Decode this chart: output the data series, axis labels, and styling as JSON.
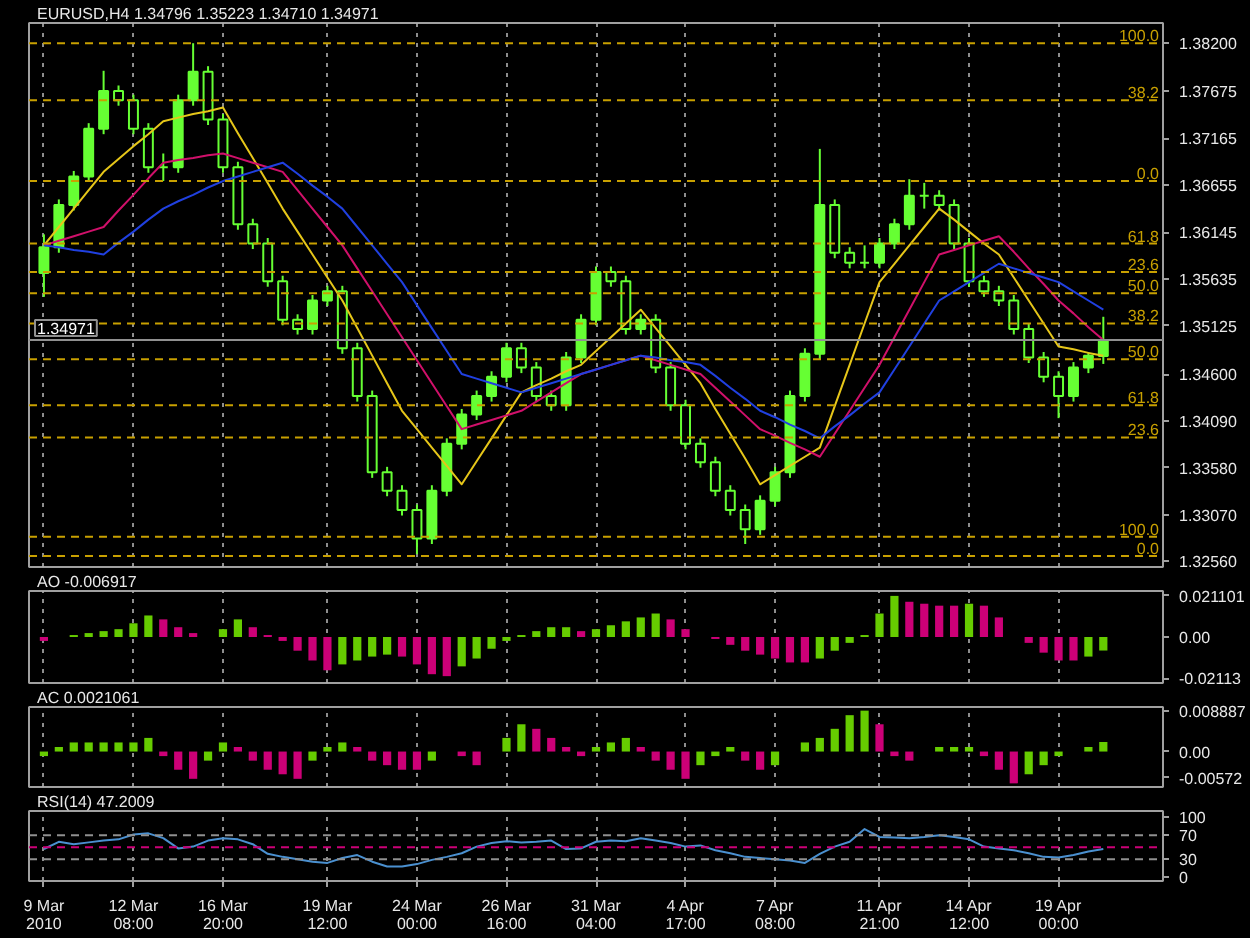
{
  "chart_data": [
    {
      "type": "candlestick",
      "title": "EURUSD,H4  1.34796 1.35223 1.34710 1.34971",
      "color": "#66ff33",
      "categories": [
        null,
        null,
        null,
        null,
        null,
        null,
        null,
        null,
        null,
        null,
        null,
        null,
        null,
        null,
        null,
        null,
        null,
        null,
        null,
        null,
        null,
        null,
        null,
        null,
        null,
        null,
        null,
        null,
        null,
        null,
        null,
        null,
        null,
        null,
        null,
        null,
        null,
        null,
        null,
        null,
        null,
        null,
        null,
        null,
        null,
        null,
        null,
        null,
        null,
        null,
        null,
        null,
        null,
        null,
        null,
        null,
        null,
        null,
        null,
        null,
        null,
        null,
        null,
        null,
        null,
        null,
        null,
        null,
        null,
        null,
        null,
        null
      ],
      "ohlc": [
        [
          1.357,
          1.3612,
          1.3544,
          1.3598
        ],
        [
          1.3598,
          1.365,
          1.3592,
          1.3644
        ],
        [
          1.3644,
          1.3681,
          1.3638,
          1.3675
        ],
        [
          1.3675,
          1.3733,
          1.3669,
          1.3727
        ],
        [
          1.3727,
          1.379,
          1.3721,
          1.3768
        ],
        [
          1.3768,
          1.3774,
          1.3752,
          1.3758
        ],
        [
          1.3758,
          1.3764,
          1.3721,
          1.3727
        ],
        [
          1.3727,
          1.3733,
          1.3679,
          1.3685
        ],
        [
          1.3685,
          1.37,
          1.367,
          1.3685
        ],
        [
          1.3685,
          1.3764,
          1.3679,
          1.3758
        ],
        [
          1.3758,
          1.382,
          1.3752,
          1.3789
        ],
        [
          1.3789,
          1.3795,
          1.3731,
          1.3737
        ],
        [
          1.3737,
          1.3743,
          1.3679,
          1.3685
        ],
        [
          1.3685,
          1.3691,
          1.3617,
          1.3623
        ],
        [
          1.3623,
          1.3629,
          1.3596,
          1.3602
        ],
        [
          1.3602,
          1.3608,
          1.3555,
          1.3561
        ],
        [
          1.3561,
          1.3567,
          1.3513,
          1.3519
        ],
        [
          1.3519,
          1.3525,
          1.3503,
          1.3509
        ],
        [
          1.3509,
          1.3546,
          1.3503,
          1.354
        ],
        [
          1.354,
          1.3556,
          1.3534,
          1.355
        ],
        [
          1.355,
          1.3556,
          1.3482,
          1.3488
        ],
        [
          1.3488,
          1.3494,
          1.343,
          1.3436
        ],
        [
          1.3436,
          1.3442,
          1.3347,
          1.3353
        ],
        [
          1.3353,
          1.3359,
          1.3327,
          1.3333
        ],
        [
          1.3333,
          1.3339,
          1.3306,
          1.3312
        ],
        [
          1.3312,
          1.3318,
          1.3264,
          1.3281
        ],
        [
          1.3281,
          1.3339,
          1.3275,
          1.3333
        ],
        [
          1.3333,
          1.339,
          1.3327,
          1.3384
        ],
        [
          1.3384,
          1.3422,
          1.3378,
          1.3416
        ],
        [
          1.3416,
          1.3442,
          1.341,
          1.3436
        ],
        [
          1.3436,
          1.3463,
          1.343,
          1.3457
        ],
        [
          1.3457,
          1.3494,
          1.3451,
          1.3488
        ],
        [
          1.3488,
          1.3494,
          1.3461,
          1.3467
        ],
        [
          1.3467,
          1.3473,
          1.343,
          1.3436
        ],
        [
          1.3436,
          1.3442,
          1.342,
          1.3426
        ],
        [
          1.3426,
          1.3484,
          1.342,
          1.3478
        ],
        [
          1.3478,
          1.3525,
          1.3472,
          1.3519
        ],
        [
          1.3519,
          1.3577,
          1.3513,
          1.3571
        ],
        [
          1.3571,
          1.3577,
          1.3555,
          1.3561
        ],
        [
          1.3561,
          1.3567,
          1.3503,
          1.3509
        ],
        [
          1.3509,
          1.3525,
          1.3503,
          1.3519
        ],
        [
          1.3519,
          1.3525,
          1.3461,
          1.3467
        ],
        [
          1.3467,
          1.3473,
          1.342,
          1.3426
        ],
        [
          1.3426,
          1.3432,
          1.3378,
          1.3384
        ],
        [
          1.3384,
          1.339,
          1.3358,
          1.3364
        ],
        [
          1.3364,
          1.337,
          1.3327,
          1.3333
        ],
        [
          1.3333,
          1.3339,
          1.3306,
          1.3312
        ],
        [
          1.3312,
          1.3318,
          1.3275,
          1.3291
        ],
        [
          1.3291,
          1.3328,
          1.3285,
          1.3322
        ],
        [
          1.3322,
          1.3359,
          1.3316,
          1.3353
        ],
        [
          1.3353,
          1.3442,
          1.3347,
          1.3436
        ],
        [
          1.3436,
          1.3488,
          1.343,
          1.3482
        ],
        [
          1.3482,
          1.3705,
          1.3476,
          1.3644
        ],
        [
          1.3644,
          1.365,
          1.3586,
          1.3592
        ],
        [
          1.3592,
          1.3598,
          1.3575,
          1.3581
        ],
        [
          1.3581,
          1.36,
          1.3575,
          1.3581
        ],
        [
          1.3581,
          1.3608,
          1.3575,
          1.3602
        ],
        [
          1.3602,
          1.3629,
          1.3596,
          1.3623
        ],
        [
          1.3623,
          1.3672,
          1.3617,
          1.3654
        ],
        [
          1.3654,
          1.3668,
          1.364,
          1.3654
        ],
        [
          1.3654,
          1.366,
          1.3638,
          1.3644
        ],
        [
          1.3644,
          1.365,
          1.3596,
          1.3602
        ],
        [
          1.3602,
          1.3608,
          1.3555,
          1.3561
        ],
        [
          1.3561,
          1.3567,
          1.3544,
          1.355
        ],
        [
          1.355,
          1.3556,
          1.3534,
          1.354
        ],
        [
          1.354,
          1.3546,
          1.3503,
          1.3509
        ],
        [
          1.3509,
          1.3515,
          1.3472,
          1.3478
        ],
        [
          1.3478,
          1.3484,
          1.3451,
          1.3457
        ],
        [
          1.3457,
          1.3463,
          1.3412,
          1.3436
        ],
        [
          1.3436,
          1.3473,
          1.343,
          1.3467
        ],
        [
          1.3467,
          1.3484,
          1.3461,
          1.348
        ],
        [
          1.34796,
          1.35223,
          1.3471,
          1.34971
        ]
      ],
      "series": [
        {
          "type": "line",
          "color": "#e6c619",
          "values": [
            1.36,
            1.362,
            1.364,
            1.366,
            1.368,
            1.3694,
            1.3708,
            1.3721,
            1.3735,
            1.3739,
            1.3743,
            1.3746,
            1.375,
            1.3722,
            1.3695,
            1.3668,
            1.364,
            1.3615,
            1.359,
            1.3565,
            1.354,
            1.351,
            1.348,
            1.345,
            1.342,
            1.34,
            1.338,
            1.336,
            1.334,
            1.3365,
            1.339,
            1.3415,
            1.344,
            1.3448,
            1.3455,
            1.3463,
            1.347,
            1.3485,
            1.35,
            1.3515,
            1.353,
            1.351,
            1.349,
            1.347,
            1.345,
            1.3422,
            1.3395,
            1.3368,
            1.334,
            1.335,
            1.336,
            1.337,
            1.338,
            1.3425,
            1.347,
            1.3515,
            1.356,
            1.358,
            1.36,
            1.362,
            1.364,
            1.3628,
            1.3615,
            1.3602,
            1.359,
            1.3565,
            1.354,
            1.3515,
            1.349,
            1.3487,
            1.3483,
            1.348
          ]
        },
        {
          "type": "line",
          "color": "#d0106a",
          "values": [
            1.36,
            1.3605,
            1.361,
            1.3615,
            1.362,
            1.3638,
            1.3655,
            1.3673,
            1.369,
            1.3693,
            1.3695,
            1.3698,
            1.37,
            1.3695,
            1.369,
            1.3685,
            1.368,
            1.366,
            1.364,
            1.362,
            1.36,
            1.3575,
            1.355,
            1.3525,
            1.35,
            1.3475,
            1.345,
            1.3425,
            1.34,
            1.3405,
            1.341,
            1.3415,
            1.342,
            1.343,
            1.344,
            1.345,
            1.346,
            1.3465,
            1.347,
            1.3475,
            1.348,
            1.3475,
            1.347,
            1.3465,
            1.346,
            1.3445,
            1.343,
            1.3415,
            1.34,
            1.3393,
            1.3385,
            1.3378,
            1.337,
            1.3395,
            1.342,
            1.3445,
            1.347,
            1.35,
            1.353,
            1.356,
            1.359,
            1.3595,
            1.36,
            1.3605,
            1.361,
            1.3593,
            1.3575,
            1.3558,
            1.354,
            1.3526,
            1.3511,
            1.3497
          ]
        },
        {
          "type": "line",
          "color": "#2040e0",
          "values": [
            1.36,
            1.3598,
            1.3595,
            1.3593,
            1.359,
            1.3603,
            1.3615,
            1.3628,
            1.364,
            1.3648,
            1.3655,
            1.3663,
            1.367,
            1.3675,
            1.368,
            1.3685,
            1.369,
            1.3678,
            1.3665,
            1.3653,
            1.364,
            1.362,
            1.36,
            1.358,
            1.356,
            1.3535,
            1.351,
            1.3485,
            1.346,
            1.3455,
            1.345,
            1.3445,
            1.344,
            1.3445,
            1.345,
            1.3455,
            1.346,
            1.3465,
            1.347,
            1.3475,
            1.348,
            1.3478,
            1.3475,
            1.3473,
            1.347,
            1.3458,
            1.3445,
            1.3433,
            1.342,
            1.3413,
            1.3405,
            1.3398,
            1.339,
            1.3403,
            1.3415,
            1.3428,
            1.344,
            1.3465,
            1.349,
            1.3515,
            1.354,
            1.355,
            1.356,
            1.357,
            1.358,
            1.3575,
            1.357,
            1.3565,
            1.356,
            1.355,
            1.354,
            1.353
          ]
        }
      ],
      "ylim": [
        1.325,
        1.3842
      ],
      "yticks": [
        {
          "value": 1.382,
          "label": "1.38200"
        },
        {
          "value": 1.37675,
          "label": "1.37675"
        },
        {
          "value": 1.37165,
          "label": "1.37165"
        },
        {
          "value": 1.36655,
          "label": "1.36655"
        },
        {
          "value": 1.36145,
          "label": "1.36145"
        },
        {
          "value": 1.35635,
          "label": "1.35635"
        },
        {
          "value": 1.35125,
          "label": "1.35125"
        },
        {
          "value": 1.346,
          "label": "1.34600"
        },
        {
          "value": 1.3409,
          "label": "1.34090"
        },
        {
          "value": 1.3358,
          "label": "1.33580"
        },
        {
          "value": 1.3307,
          "label": "1.33070"
        },
        {
          "value": 1.3256,
          "label": "1.32560"
        }
      ],
      "tick_labels": "y",
      "grid": "x",
      "ref_lines": [
        {
          "axis": "y",
          "value": 1.382,
          "color": "#c8a000",
          "line_style": "dashed"
        },
        {
          "axis": "y",
          "value": 1.3758,
          "color": "#c8a000",
          "line_style": "dashed"
        },
        {
          "axis": "y",
          "value": 1.367,
          "color": "#c8a000",
          "line_style": "dashed"
        },
        {
          "axis": "y",
          "value": 1.3602,
          "color": "#c8a000",
          "line_style": "dashed"
        },
        {
          "axis": "y",
          "value": 1.3571,
          "color": "#c8a000",
          "line_style": "dashed"
        },
        {
          "axis": "y",
          "value": 1.3548,
          "color": "#c8a000",
          "line_style": "dashed"
        },
        {
          "axis": "y",
          "value": 1.3515,
          "color": "#c8a000",
          "line_style": "dashed"
        },
        {
          "axis": "y",
          "value": 1.34971,
          "label": "1.34971",
          "color": "#909090",
          "line_style": "solid"
        },
        {
          "axis": "y",
          "value": 1.3476,
          "color": "#c8a000",
          "line_style": "dashed"
        },
        {
          "axis": "y",
          "value": 1.3426,
          "color": "#c8a000",
          "line_style": "dashed"
        },
        {
          "axis": "y",
          "value": 1.3391,
          "color": "#c8a000",
          "line_style": "dashed"
        },
        {
          "axis": "y",
          "value": 1.3283,
          "color": "#c8a000",
          "line_style": "dashed"
        },
        {
          "axis": "y",
          "value": 1.3262,
          "color": "#c8a000",
          "line_style": "dashed"
        }
      ],
      "annotations": [
        {
          "text": "100.0",
          "y": 1.382
        },
        {
          "text": "38.2",
          "y": 1.3758
        },
        {
          "text": "0.0",
          "y": 1.367
        },
        {
          "text": "61.8",
          "y": 1.3602
        },
        {
          "text": "23.6",
          "y": 1.3571
        },
        {
          "text": "50.0",
          "y": 1.3548
        },
        {
          "text": "38.2",
          "y": 1.3515
        },
        {
          "text": "50.0",
          "y": 1.3476
        },
        {
          "text": "61.8",
          "y": 1.3426
        },
        {
          "text": "23.6",
          "y": 1.3391
        },
        {
          "text": "100.0",
          "y": 1.3283
        },
        {
          "text": "0.0",
          "y": 1.3262
        }
      ]
    },
    {
      "type": "bar",
      "title": "AO -0.006917",
      "categories": [
        null,
        null,
        null,
        null,
        null,
        null,
        null,
        null,
        null,
        null,
        null,
        null,
        null,
        null,
        null,
        null,
        null,
        null,
        null,
        null,
        null,
        null,
        null,
        null,
        null,
        null,
        null,
        null,
        null,
        null,
        null,
        null,
        null,
        null,
        null,
        null,
        null,
        null,
        null,
        null,
        null,
        null,
        null,
        null,
        null,
        null,
        null,
        null,
        null,
        null,
        null,
        null,
        null,
        null,
        null,
        null,
        null,
        null,
        null,
        null,
        null,
        null,
        null,
        null,
        null,
        null,
        null,
        null,
        null,
        null,
        null,
        null
      ],
      "values": [
        -0.002,
        0.0,
        0.001,
        0.002,
        0.003,
        0.004,
        0.007,
        0.011,
        0.009,
        0.005,
        0.002,
        0.0,
        0.004,
        0.009,
        0.005,
        0.001,
        -0.002,
        -0.007,
        -0.012,
        -0.017,
        -0.014,
        -0.012,
        -0.01,
        -0.009,
        -0.01,
        -0.014,
        -0.019,
        -0.02,
        -0.015,
        -0.011,
        -0.006,
        -0.002,
        0.001,
        0.003,
        0.005,
        0.005,
        0.003,
        0.004,
        0.006,
        0.008,
        0.01,
        0.012,
        0.009,
        0.004,
        0.0,
        -0.001,
        -0.004,
        -0.007,
        -0.009,
        -0.011,
        -0.013,
        -0.013,
        -0.011,
        -0.007,
        -0.003,
        0.001,
        0.012,
        0.021,
        0.018,
        0.017,
        0.016,
        0.016,
        0.017,
        0.016,
        0.01,
        0.0,
        -0.003,
        -0.008,
        -0.012,
        -0.012,
        -0.01,
        -0.006917
      ],
      "colors": [
        "#cc0077",
        "#66cc00",
        "#66cc00",
        "#66cc00",
        "#66cc00",
        "#66cc00",
        "#66cc00",
        "#66cc00",
        "#cc0077",
        "#cc0077",
        "#cc0077",
        "#cc0077",
        "#66cc00",
        "#66cc00",
        "#cc0077",
        "#cc0077",
        "#cc0077",
        "#cc0077",
        "#cc0077",
        "#cc0077",
        "#66cc00",
        "#66cc00",
        "#66cc00",
        "#66cc00",
        "#cc0077",
        "#cc0077",
        "#cc0077",
        "#cc0077",
        "#66cc00",
        "#66cc00",
        "#66cc00",
        "#66cc00",
        "#66cc00",
        "#66cc00",
        "#66cc00",
        "#66cc00",
        "#cc0077",
        "#66cc00",
        "#66cc00",
        "#66cc00",
        "#66cc00",
        "#66cc00",
        "#cc0077",
        "#cc0077",
        "#cc0077",
        "#cc0077",
        "#cc0077",
        "#cc0077",
        "#cc0077",
        "#cc0077",
        "#cc0077",
        "#cc0077",
        "#66cc00",
        "#66cc00",
        "#66cc00",
        "#66cc00",
        "#66cc00",
        "#66cc00",
        "#cc0077",
        "#cc0077",
        "#cc0077",
        "#cc0077",
        "#66cc00",
        "#cc0077",
        "#cc0077",
        "#cc0077",
        "#cc0077",
        "#cc0077",
        "#cc0077",
        "#cc0077",
        "#66cc00",
        "#66cc00"
      ],
      "ylim": [
        -0.0235,
        0.0235
      ],
      "yticks": [
        {
          "value": 0.021101,
          "label": "0.021101"
        },
        {
          "value": 0,
          "label": "0.00"
        },
        {
          "value": -0.02113,
          "label": "-0.02113"
        }
      ],
      "tick_labels": "y",
      "grid": "x"
    },
    {
      "type": "bar",
      "title": "AC 0.0021061",
      "categories": [
        null,
        null,
        null,
        null,
        null,
        null,
        null,
        null,
        null,
        null,
        null,
        null,
        null,
        null,
        null,
        null,
        null,
        null,
        null,
        null,
        null,
        null,
        null,
        null,
        null,
        null,
        null,
        null,
        null,
        null,
        null,
        null,
        null,
        null,
        null,
        null,
        null,
        null,
        null,
        null,
        null,
        null,
        null,
        null,
        null,
        null,
        null,
        null,
        null,
        null,
        null,
        null,
        null,
        null,
        null,
        null,
        null,
        null,
        null,
        null,
        null,
        null,
        null,
        null,
        null,
        null,
        null,
        null,
        null,
        null,
        null,
        null
      ],
      "values": [
        -0.001,
        0.001,
        0.002,
        0.002,
        0.002,
        0.002,
        0.002,
        0.003,
        -0.001,
        -0.004,
        -0.006,
        -0.002,
        0.002,
        0.001,
        -0.002,
        -0.004,
        -0.005,
        -0.006,
        -0.002,
        0.001,
        0.002,
        0.001,
        -0.002,
        -0.003,
        -0.004,
        -0.004,
        -0.002,
        0.0,
        -0.001,
        -0.003,
        0.0,
        0.003,
        0.006,
        0.005,
        0.003,
        0.001,
        -0.001,
        0.001,
        0.002,
        0.003,
        0.001,
        -0.002,
        -0.004,
        -0.006,
        -0.003,
        -0.001,
        0.001,
        -0.002,
        -0.004,
        -0.003,
        0.0,
        0.002,
        0.003,
        0.005,
        0.008,
        0.009,
        0.006,
        -0.001,
        -0.002,
        0.0,
        0.001,
        0.001,
        0.001,
        -0.001,
        -0.004,
        -0.007,
        -0.005,
        -0.003,
        -0.001,
        0.0,
        0.001,
        0.0021061
      ],
      "colors": [
        "#66cc00",
        "#66cc00",
        "#66cc00",
        "#66cc00",
        "#66cc00",
        "#66cc00",
        "#66cc00",
        "#66cc00",
        "#cc0077",
        "#cc0077",
        "#cc0077",
        "#66cc00",
        "#66cc00",
        "#cc0077",
        "#cc0077",
        "#cc0077",
        "#cc0077",
        "#cc0077",
        "#66cc00",
        "#66cc00",
        "#66cc00",
        "#cc0077",
        "#cc0077",
        "#cc0077",
        "#cc0077",
        "#cc0077",
        "#66cc00",
        "#66cc00",
        "#cc0077",
        "#cc0077",
        "#66cc00",
        "#66cc00",
        "#66cc00",
        "#cc0077",
        "#cc0077",
        "#cc0077",
        "#cc0077",
        "#66cc00",
        "#66cc00",
        "#66cc00",
        "#cc0077",
        "#cc0077",
        "#cc0077",
        "#cc0077",
        "#66cc00",
        "#66cc00",
        "#66cc00",
        "#cc0077",
        "#cc0077",
        "#66cc00",
        "#66cc00",
        "#66cc00",
        "#66cc00",
        "#66cc00",
        "#66cc00",
        "#66cc00",
        "#cc0077",
        "#cc0077",
        "#cc0077",
        "#66cc00",
        "#66cc00",
        "#66cc00",
        "#66cc00",
        "#cc0077",
        "#cc0077",
        "#cc0077",
        "#66cc00",
        "#66cc00",
        "#66cc00",
        "#66cc00",
        "#66cc00",
        "#66cc00"
      ],
      "ylim": [
        -0.0078,
        0.0098
      ],
      "yticks": [
        {
          "value": 0.008887,
          "label": "0.008887"
        },
        {
          "value": 0,
          "label": "0.00"
        },
        {
          "value": -0.00572,
          "label": "-0.00572"
        }
      ],
      "tick_labels": "y",
      "grid": "x"
    },
    {
      "type": "line",
      "title": "RSI(14) 47.2009",
      "color": "#4a90d0",
      "categories": [
        "9 Mar 2010",
        null,
        null,
        null,
        null,
        null,
        "12 Mar 08:00",
        null,
        null,
        null,
        null,
        null,
        "16 Mar 20:00",
        null,
        null,
        null,
        null,
        null,
        null,
        "19 Mar 12:00",
        null,
        null,
        null,
        null,
        null,
        "24 Mar 00:00",
        null,
        null,
        null,
        null,
        null,
        "26 Mar 16:00",
        null,
        null,
        null,
        null,
        null,
        "31 Mar 04:00",
        null,
        null,
        null,
        null,
        null,
        "4 Apr 17:00",
        null,
        null,
        null,
        null,
        null,
        "7 Apr 08:00",
        null,
        null,
        null,
        null,
        null,
        null,
        "11 Apr 21:00",
        null,
        null,
        null,
        null,
        null,
        "14 Apr 12:00",
        null,
        null,
        null,
        null,
        null,
        "19 Apr 00:00",
        null,
        null,
        null
      ],
      "values": [
        47,
        59,
        55,
        58,
        61,
        63,
        71,
        73,
        65,
        48,
        51,
        61,
        65,
        63,
        55,
        39,
        34,
        30,
        26,
        24,
        32,
        37,
        26,
        18,
        18,
        22,
        29,
        34,
        40,
        51,
        57,
        60,
        58,
        59,
        61,
        47,
        48,
        59,
        61,
        60,
        65,
        61,
        57,
        51,
        53,
        45,
        40,
        34,
        32,
        30,
        28,
        24,
        39,
        51,
        59,
        80,
        67,
        66,
        65,
        67,
        70,
        67,
        63,
        51,
        48,
        45,
        40,
        34,
        33,
        37,
        43,
        47.2009
      ],
      "ylim": [
        -6,
        110
      ],
      "yticks": [
        100,
        70,
        30,
        0
      ],
      "grid": "x",
      "ref_lines": [
        {
          "axis": "y",
          "value": 70,
          "label": null,
          "color": "#909090",
          "line_style": "dashed"
        },
        {
          "axis": "y",
          "value": 50,
          "label": null,
          "color": "#cc0077",
          "line_style": "dashed"
        },
        {
          "axis": "y",
          "value": 30,
          "label": null,
          "color": "#909090",
          "line_style": "dashed"
        }
      ]
    }
  ]
}
